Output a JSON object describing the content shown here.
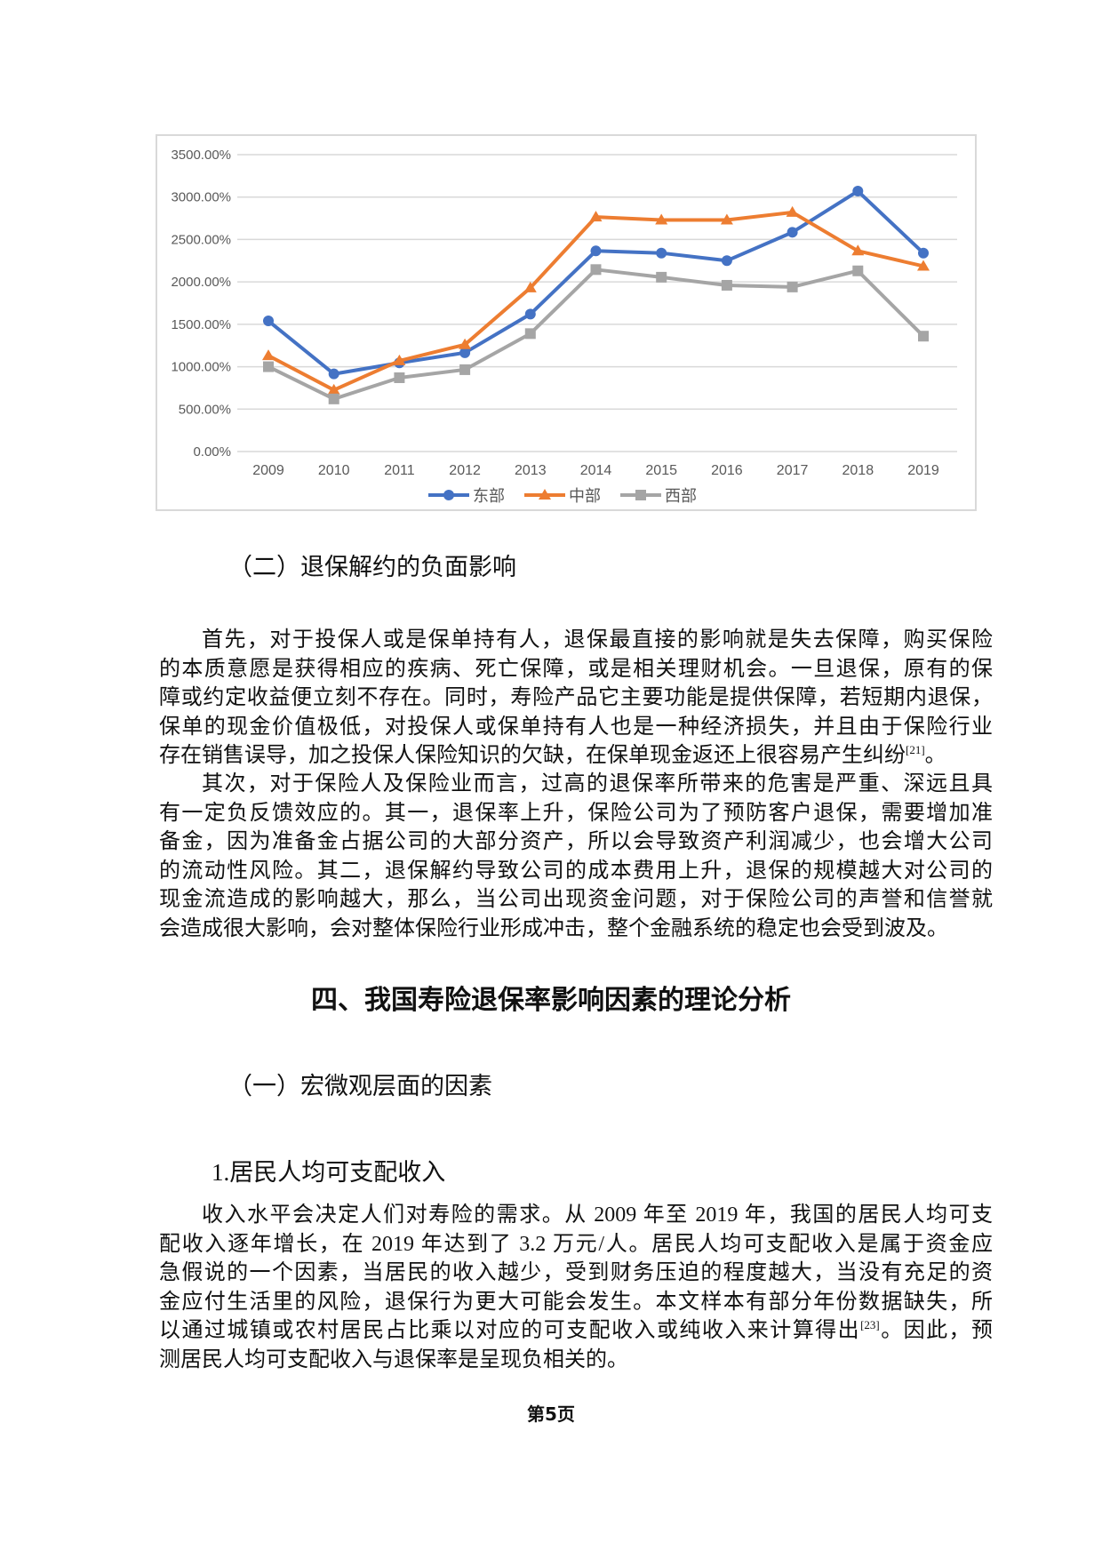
{
  "chart_data": {
    "type": "line",
    "categories": [
      "2009",
      "2010",
      "2011",
      "2012",
      "2013",
      "2014",
      "2015",
      "2016",
      "2017",
      "2018",
      "2019"
    ],
    "ylim": [
      0,
      3500
    ],
    "yticks": [
      "0.00%",
      "500.00%",
      "1000.00%",
      "1500.00%",
      "2000.00%",
      "2500.00%",
      "3000.00%",
      "3500.00%"
    ],
    "ytick_values": [
      0,
      500,
      1000,
      1500,
      2000,
      2500,
      3000,
      3500
    ],
    "grid": true,
    "legend_position": "bottom",
    "series": [
      {
        "name": "东部",
        "color": "#4472C4",
        "marker": "circle",
        "values": [
          1540,
          915,
          1045,
          1165,
          1620,
          2365,
          2340,
          2250,
          2585,
          3070,
          2340
        ]
      },
      {
        "name": "中部",
        "color": "#ED7D31",
        "marker": "triangle",
        "values": [
          1130,
          725,
          1070,
          1260,
          1930,
          2765,
          2730,
          2730,
          2820,
          2365,
          2185
        ]
      },
      {
        "name": "西部",
        "color": "#A5A5A5",
        "marker": "square",
        "values": [
          1000,
          620,
          870,
          965,
          1390,
          2145,
          2055,
          1960,
          1940,
          2130,
          1360
        ]
      }
    ]
  },
  "section2_heading": "（二）退保解约的负面影响",
  "para1": [
    "首先，对于投保人或是保单持有人，退保最直接的影响就是失去保障，购买保险",
    "的本质意愿是获得相应的疾病、死亡保障，或是相关理财机会。一旦退保，原有的保",
    "障或约定收益便立刻不存在。同时，寿险产品它主要功能是提供保障，若短期内退保，",
    "保单的现金价值极低，对投保人或保单持有人也是一种经济损失，并且由于保险行业",
    "存在销售误导，加之投保人保险知识的欠缺，在保单现金返还上很容易产生纠纷"
  ],
  "para1_cite": "[21]",
  "para1_end": "。",
  "para2": [
    "其次，对于保险人及保险业而言，过高的退保率所带来的危害是严重、深远且具",
    "有一定负反馈效应的。其一，退保率上升，保险公司为了预防客户退保，需要增加准",
    "备金，因为准备金占据公司的大部分资产，所以会导致资产利润减少，也会增大公司",
    "的流动性风险。其二，退保解约导致公司的成本费用上升，退保的规模越大对公司的",
    "现金流造成的影响越大，那么，当公司出现资金问题，对于保险公司的声誉和信誉就",
    "会造成很大影响，会对整体保险行业形成冲击，整个金融系统的稳定也会受到波及。"
  ],
  "chapter_heading": "四、我国寿险退保率影响因素的理论分析",
  "section1_heading": "（一）宏微观层面的因素",
  "sub1_heading": "1.居民人均可支配收入",
  "para3": [
    "收入水平会决定人们对寿险的需求。从 2009 年至 2019 年，我国的居民人均可支",
    "配收入逐年增长，在 2019 年达到了 3.2 万元/人。居民人均可支配收入是属于资金应",
    "急假说的一个因素，当居民的收入越少，受到财务压迫的程度越大，当没有充足的资",
    "金应付生活里的风险，退保行为更大可能会发生。本文样本有部分年份数据缺失，所"
  ],
  "para3_line5_a": "以通过城镇或农村居民占比乘以对应的可支配收入或纯收入来计算得出",
  "para3_cite": "[23]",
  "para3_line5_b": "。因此，预",
  "para3_last": "测居民人均可支配收入与退保率是呈现负相关的。",
  "footer": "第5页"
}
